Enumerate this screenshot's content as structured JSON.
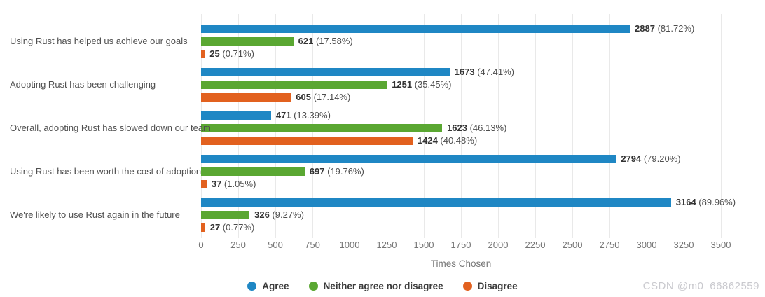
{
  "chart_data": {
    "type": "bar",
    "orientation": "horizontal",
    "categories": [
      "Using Rust has helped us achieve our goals",
      "Adopting Rust has been challenging",
      "Overall, adopting Rust has slowed down our team",
      "Using Rust has been worth the cost of adoption",
      "We're likely to use Rust again in the future"
    ],
    "series": [
      {
        "name": "Agree",
        "color": "#1f87c4",
        "values": [
          2887,
          1673,
          471,
          2794,
          3164
        ],
        "percents": [
          "81.72%",
          "47.41%",
          "13.39%",
          "79.20%",
          "89.96%"
        ]
      },
      {
        "name": "Neither agree nor disagree",
        "color": "#5aa732",
        "values": [
          621,
          1251,
          1623,
          697,
          326
        ],
        "percents": [
          "17.58%",
          "35.45%",
          "46.13%",
          "19.76%",
          "9.27%"
        ]
      },
      {
        "name": "Disagree",
        "color": "#e2611f",
        "values": [
          25,
          605,
          1424,
          37,
          27
        ],
        "percents": [
          "0.71%",
          "17.14%",
          "40.48%",
          "1.05%",
          "0.77%"
        ]
      }
    ],
    "xlabel": "Times Chosen",
    "x_ticks": [
      0,
      250,
      500,
      750,
      1000,
      1250,
      1500,
      1750,
      2000,
      2250,
      2500,
      2750,
      3000,
      3250,
      3500
    ],
    "xlim": [
      0,
      3500
    ],
    "grid": true,
    "legend_position": "bottom",
    "gridline_color": "#e9e9e9"
  },
  "watermark": {
    "text": "CSDN @m0_66862559"
  }
}
